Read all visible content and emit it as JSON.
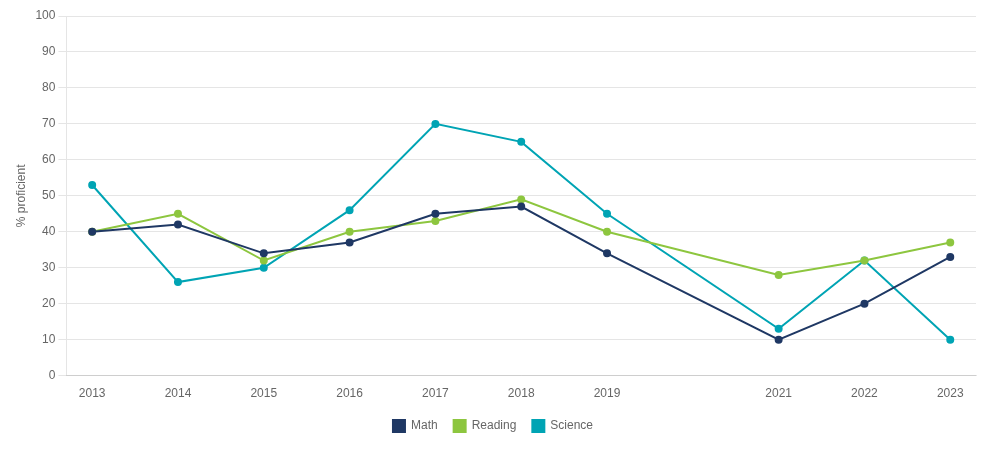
{
  "chart_data": {
    "type": "line",
    "x": [
      2013,
      2014,
      2015,
      2016,
      2017,
      2018,
      2019,
      2021,
      2022,
      2023
    ],
    "series": [
      {
        "name": "Math",
        "color": "#1f3864",
        "values": [
          40,
          42,
          34,
          37,
          45,
          47,
          34,
          10,
          20,
          33
        ]
      },
      {
        "name": "Reading",
        "color": "#8dc63f",
        "values": [
          40,
          45,
          32,
          40,
          43,
          49,
          40,
          28,
          32,
          37
        ]
      },
      {
        "name": "Science",
        "color": "#00a4b4",
        "values": [
          53,
          26,
          30,
          46,
          70,
          65,
          45,
          13,
          32,
          10
        ]
      }
    ],
    "ylabel": "% proficient",
    "xlim": [
      2012.7,
      2023.3
    ],
    "xticks": [
      2013,
      2014,
      2015,
      2016,
      2017,
      2018,
      2019,
      2021,
      2022,
      2023
    ],
    "ylim": [
      0,
      100
    ],
    "yticks": [
      0,
      10,
      20,
      30,
      40,
      50,
      60,
      70,
      80,
      90,
      100
    ],
    "grid": "y",
    "legend": "bottom",
    "marker": "circle",
    "line_style": "solid"
  }
}
